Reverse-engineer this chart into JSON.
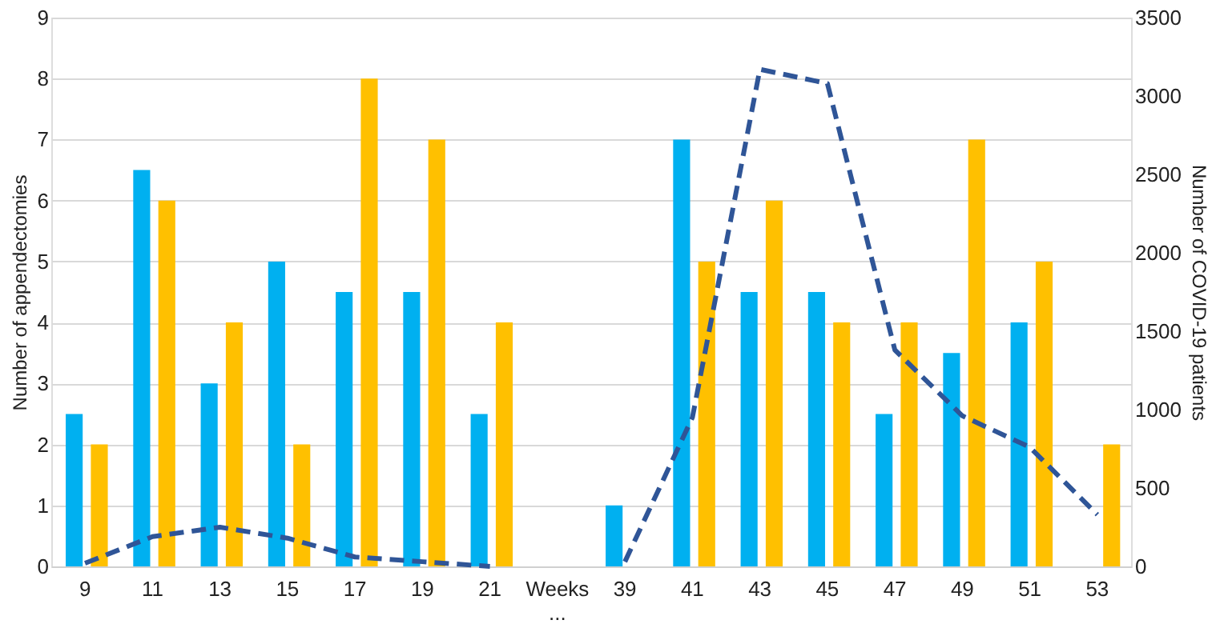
{
  "chart_data": {
    "type": "bar",
    "categories": [
      "9",
      "11",
      "13",
      "15",
      "17",
      "19",
      "21",
      "Weeks ...",
      "39",
      "41",
      "43",
      "45",
      "47",
      "49",
      "51",
      "53"
    ],
    "series": [
      {
        "color": "#00b0f0",
        "values": [
          2.5,
          6.5,
          3,
          5,
          4.5,
          4.5,
          2.5,
          null,
          1,
          7,
          4.5,
          4.5,
          2.5,
          3.5,
          4,
          null
        ]
      },
      {
        "color": "#ffc000",
        "values": [
          2,
          6,
          4,
          2,
          8,
          7,
          4,
          null,
          null,
          5,
          6,
          4,
          4,
          7,
          5,
          2
        ]
      },
      {
        "type": "line",
        "axis": "y2",
        "color": "#2f5597",
        "line_style": "dashed",
        "values": [
          20,
          190,
          250,
          180,
          60,
          30,
          0,
          null,
          30,
          950,
          3170,
          3080,
          1380,
          960,
          760,
          330
        ]
      }
    ],
    "ylabel": "Number of appendectomies",
    "y2label": "Number of COVID-19 patients",
    "ylim": [
      0,
      9
    ],
    "yticks": [
      0,
      1,
      2,
      3,
      4,
      5,
      6,
      7,
      8,
      9
    ],
    "y2lim": [
      0,
      3500
    ],
    "y2ticks": [
      0,
      500,
      1000,
      1500,
      2000,
      2500,
      3000,
      3500
    ],
    "grid": "y",
    "marker": "none"
  }
}
